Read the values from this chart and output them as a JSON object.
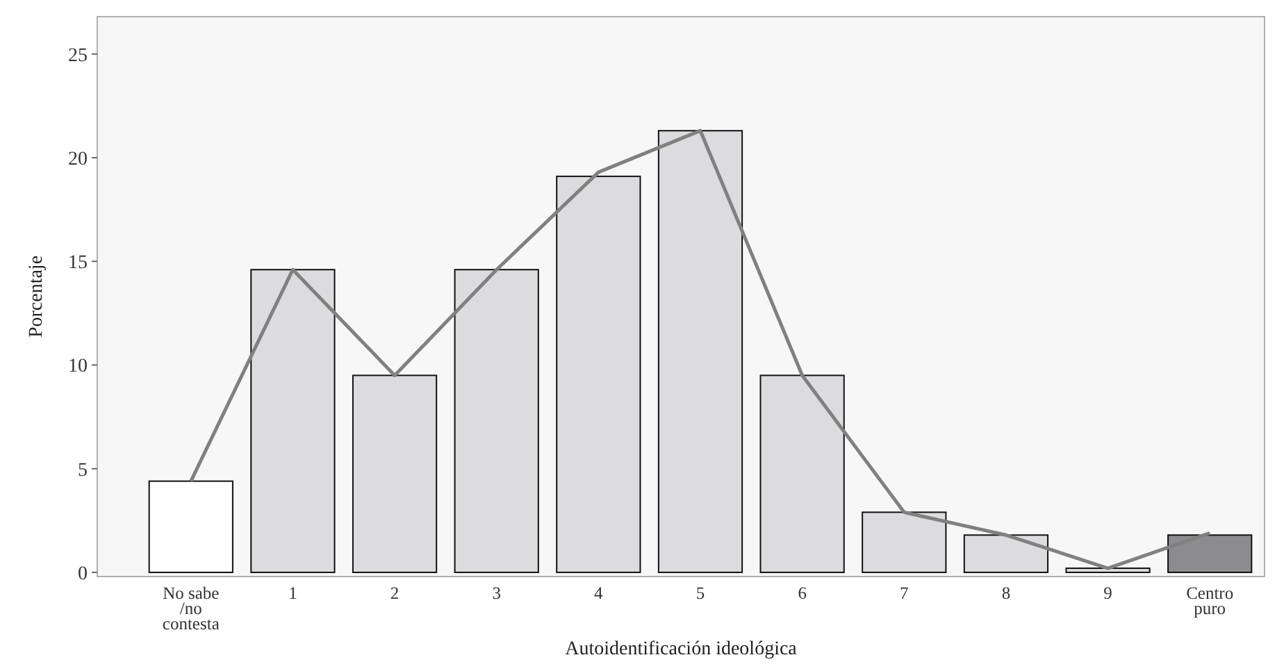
{
  "chart_data": {
    "type": "bar",
    "xlabel": "Autoidentificación ideológica",
    "ylabel": "Porcentaje",
    "categories": [
      "No sabe\n/no\ncontesta",
      "1",
      "2",
      "3",
      "4",
      "5",
      "6",
      "7",
      "8",
      "9",
      "Centro\npuro"
    ],
    "series": [
      {
        "colors": [
          "#ffffff",
          "#dcdcde",
          "#dcdcde",
          "#dcdcde",
          "#dcdcde",
          "#dcdcde",
          "#dcdcde",
          "#dcdcde",
          "#dcdcde",
          "#dcdcde",
          "#8c8c8f"
        ],
        "values": [
          4.4,
          14.6,
          9.5,
          14.6,
          19.1,
          21.3,
          9.5,
          2.9,
          1.8,
          0.2,
          1.8
        ]
      },
      {
        "type": "line",
        "color": "#808080",
        "values": [
          4.4,
          14.6,
          9.5,
          14.6,
          19.3,
          21.3,
          9.5,
          2.9,
          1.8,
          0.2,
          1.9
        ]
      }
    ],
    "ylim": [
      -0.2,
      26.8
    ],
    "yticks": [
      0,
      5,
      10,
      15,
      20,
      25
    ],
    "grid": false
  }
}
